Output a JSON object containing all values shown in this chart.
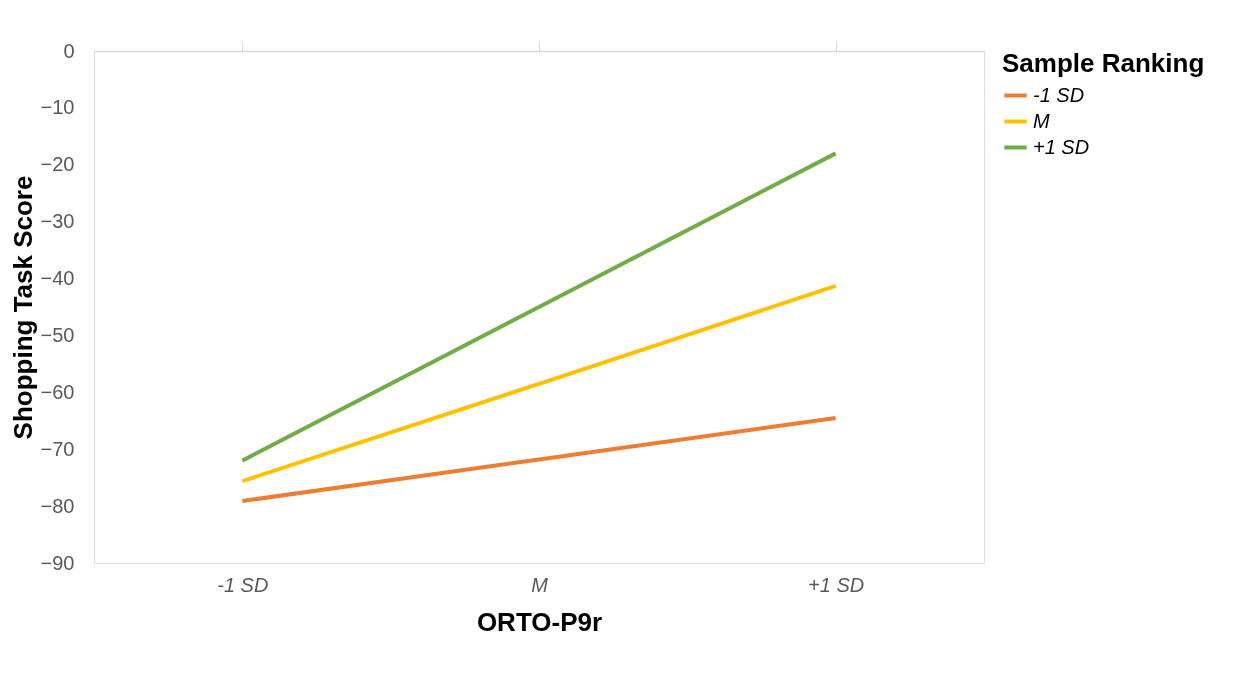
{
  "chart_data": {
    "type": "line",
    "xlabel": "ORTO-P9r",
    "ylabel": "Shopping Task Score",
    "legend_title": "Sample Ranking",
    "categories": [
      "-1 SD",
      "M",
      "+1 SD"
    ],
    "series": [
      {
        "name": "-1 SD",
        "color": "#ed7d31",
        "values": [
          -79.1,
          -71.8,
          -64.5
        ]
      },
      {
        "name": "M",
        "color": "#ffc000",
        "values": [
          -75.6,
          -58.5,
          -41.3
        ]
      },
      {
        "name": "+1 SD",
        "color": "#70ad47",
        "values": [
          -72,
          -45,
          -18
        ]
      }
    ],
    "ylim": [
      -90,
      0
    ],
    "yticks": [
      -90,
      -80,
      -70,
      -60,
      -50,
      -40,
      -30,
      -20,
      -10,
      0
    ],
    "grid": false,
    "legend": "right",
    "marker": "none",
    "line_style": "solid"
  }
}
